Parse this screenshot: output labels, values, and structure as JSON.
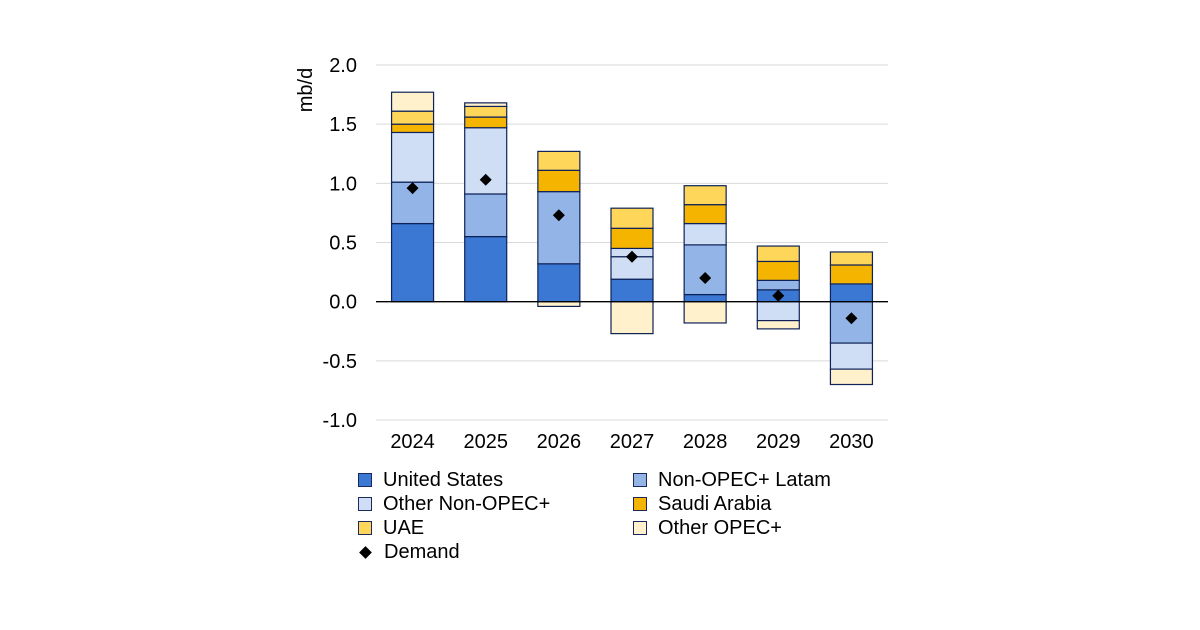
{
  "chart_data": {
    "type": "bar",
    "stacked": true,
    "ylabel": "mb/d",
    "ylim": [
      -1.0,
      2.0
    ],
    "yticks": [
      -1.0,
      -0.5,
      0.0,
      0.5,
      1.0,
      1.5,
      2.0
    ],
    "ytick_labels": [
      "-1.0",
      "-0.5",
      "0.0",
      "0.5",
      "1.0",
      "1.5",
      "2.0"
    ],
    "grid": true,
    "legend_position": "bottom",
    "categories": [
      "2024",
      "2025",
      "2026",
      "2027",
      "2028",
      "2029",
      "2030"
    ],
    "series": [
      {
        "name": "United States",
        "color": "#3b78d4",
        "values": [
          0.66,
          0.55,
          0.32,
          0.19,
          0.06,
          0.1,
          0.15
        ]
      },
      {
        "name": "Non-OPEC+ Latam",
        "color": "#93b4e6",
        "values": [
          0.35,
          0.36,
          0.61,
          0.0,
          0.42,
          0.08,
          -0.35
        ]
      },
      {
        "name": "Other Non-OPEC+",
        "color": "#cfdef5",
        "values": [
          0.42,
          0.56,
          0.0,
          0.19,
          0.18,
          -0.16,
          -0.22
        ]
      },
      {
        "name": "Saudi Arabia",
        "color": "#f4b400",
        "values": [
          0.07,
          0.09,
          0.18,
          0.0,
          0.0,
          0.0,
          0.0
        ]
      },
      {
        "name": "UAE",
        "color": "#fdd65a",
        "values": [
          0.11,
          0.09,
          0.16,
          0.0,
          0.0,
          0.0,
          0.0
        ]
      },
      {
        "name": "Other OPEC+",
        "color": "#fff1cc",
        "values": [
          0.16,
          0.03,
          -0.04,
          -0.27,
          -0.18,
          -0.07,
          -0.13
        ]
      }
    ],
    "extra_segments": [
      {
        "name": "Other Non-OPEC+",
        "color": "#cfdef5",
        "values": [
          0,
          0,
          0,
          0.07,
          0,
          0,
          0
        ]
      },
      {
        "name": "Saudi Arabia",
        "color": "#f4b400",
        "values": [
          0,
          0,
          0,
          0.17,
          0.16,
          0.16,
          0.16
        ]
      },
      {
        "name": "UAE",
        "color": "#fdd65a",
        "values": [
          0,
          0,
          0,
          0.17,
          0.16,
          0.13,
          0.11
        ]
      }
    ],
    "demand": {
      "name": "Demand",
      "values": [
        0.96,
        1.03,
        0.73,
        0.38,
        0.2,
        0.05,
        -0.14
      ]
    }
  },
  "legend": {
    "items": [
      {
        "label": "United States",
        "color": "#3b78d4"
      },
      {
        "label": "Non-OPEC+ Latam",
        "color": "#93b4e6"
      },
      {
        "label": "Other Non-OPEC+",
        "color": "#cfdef5"
      },
      {
        "label": "Saudi Arabia",
        "color": "#f4b400"
      },
      {
        "label": "UAE",
        "color": "#fdd65a"
      },
      {
        "label": "Other OPEC+",
        "color": "#fff1cc"
      }
    ],
    "demand_label": "Demand"
  }
}
